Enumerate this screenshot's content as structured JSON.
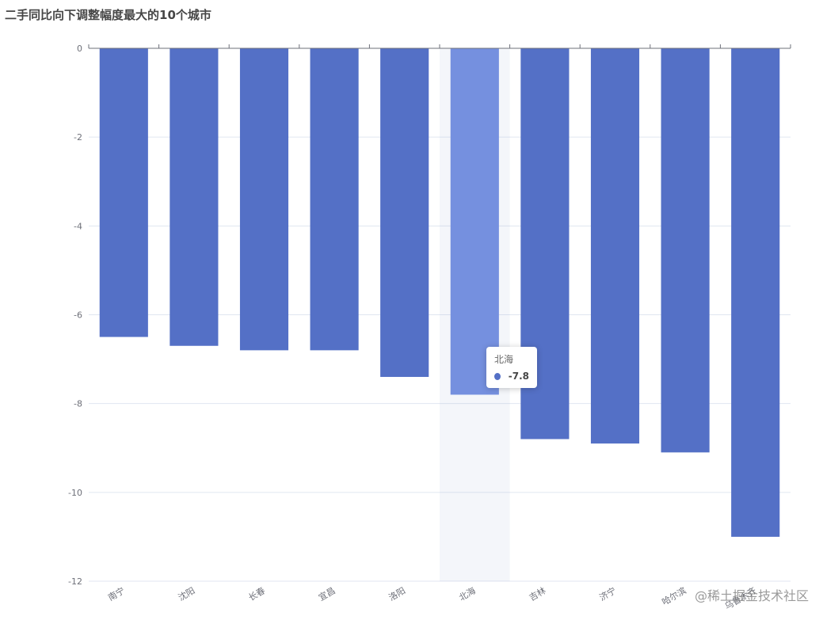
{
  "chart_data": {
    "type": "bar",
    "title": "二手同比向下调整幅度最大的10个城市",
    "categories": [
      "南宁",
      "沈阳",
      "长春",
      "宜昌",
      "洛阳",
      "北海",
      "吉林",
      "济宁",
      "哈尔滨",
      "乌鲁木齐"
    ],
    "values": [
      -6.5,
      -6.7,
      -6.8,
      -6.8,
      -7.4,
      -7.8,
      -8.8,
      -8.9,
      -9.1,
      -11.0
    ],
    "ylim": [
      -12,
      0
    ],
    "yticks": [
      0,
      -2,
      -4,
      -6,
      -8,
      -10,
      -12
    ],
    "grid": true,
    "bar_color": "#5470c6",
    "highlight_color": "#7590df",
    "highlight_index": 5
  },
  "tooltip": {
    "name": "北海",
    "value": "-7.8"
  },
  "watermark": "@稀土掘金技术社区"
}
